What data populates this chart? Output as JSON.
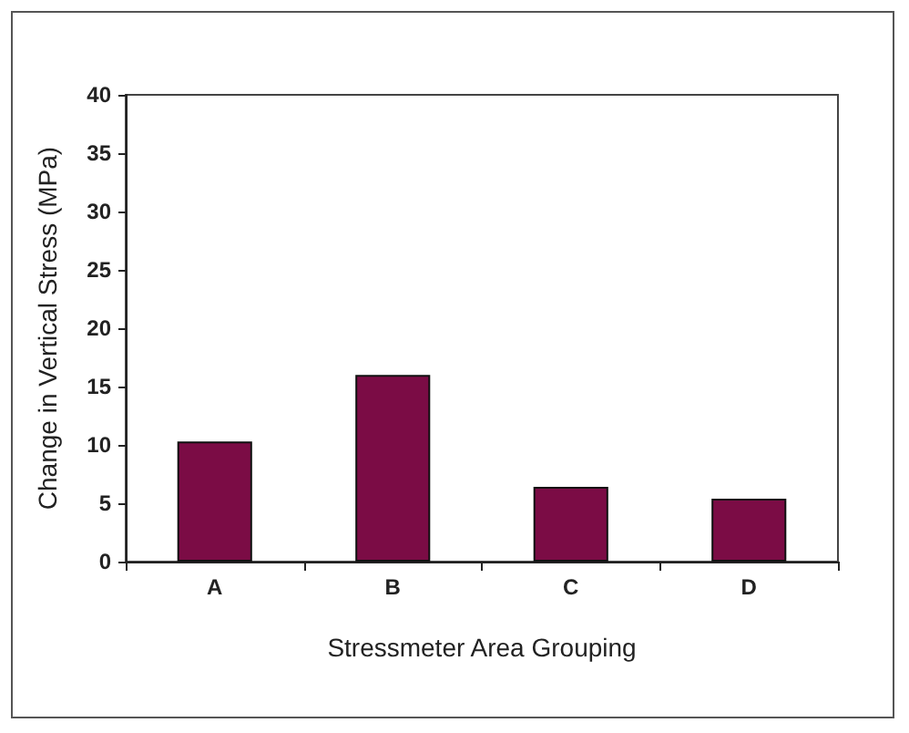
{
  "chart_data": {
    "type": "bar",
    "xlabel": "Stressmeter Area Grouping",
    "ylabel": "Change in Vertical Stress (MPa)",
    "categories": [
      "A",
      "B",
      "C",
      "D"
    ],
    "series": [
      {
        "color": "#7b0c45",
        "values": [
          10.3,
          16.0,
          6.4,
          5.4
        ]
      }
    ],
    "ylim": [
      0,
      40
    ],
    "yticks": [
      0,
      5,
      10,
      15,
      20,
      25,
      30,
      35,
      40
    ],
    "grid": false
  }
}
